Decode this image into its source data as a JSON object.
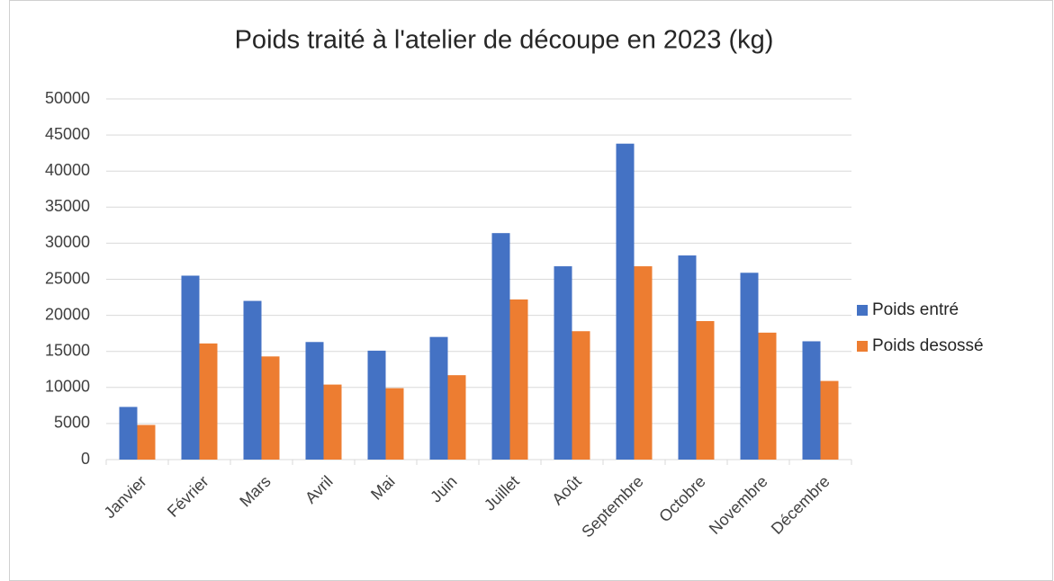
{
  "chart_data": {
    "type": "bar",
    "title": "Poids traité à l'atelier de découpe en 2023 (kg)",
    "categories": [
      "Janvier",
      "Février",
      "Mars",
      "Avril",
      "Mai",
      "Juin",
      "Juillet",
      "Août",
      "Septembre",
      "Octobre",
      "Novembre",
      "Décembre"
    ],
    "series": [
      {
        "name": "Poids entré",
        "color": "#4472c4",
        "values": [
          7300,
          25500,
          22000,
          16300,
          15100,
          17000,
          31400,
          26800,
          43800,
          28300,
          25900,
          16400
        ]
      },
      {
        "name": "Poids desossé",
        "color": "#ed7d31",
        "values": [
          4800,
          16100,
          14300,
          10400,
          9900,
          11700,
          22200,
          17800,
          26800,
          19200,
          17600,
          10900
        ]
      }
    ],
    "ylim": [
      0,
      50000
    ],
    "yticks": [
      0,
      5000,
      10000,
      15000,
      20000,
      25000,
      30000,
      35000,
      40000,
      45000,
      50000
    ],
    "grid": true,
    "legend": "right"
  }
}
